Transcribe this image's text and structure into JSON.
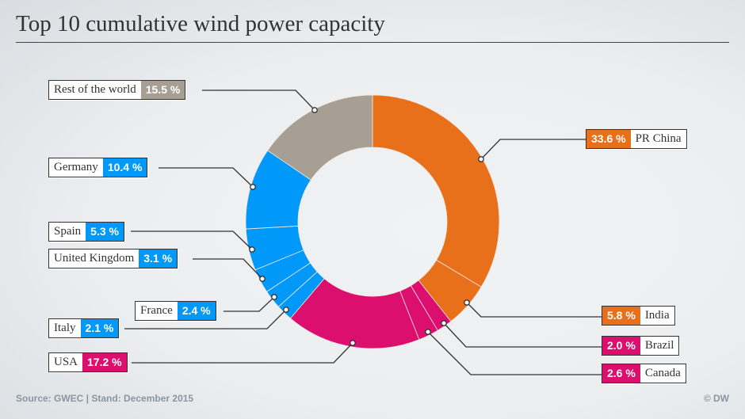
{
  "chart_data": {
    "type": "pie",
    "variant": "donut",
    "title": "Top 10 cumulative wind power capacity",
    "unit": "%",
    "slices": [
      {
        "label": "PR China",
        "value": 33.6,
        "display": "33.6 %",
        "color": "#e8701a"
      },
      {
        "label": "India",
        "value": 5.8,
        "display": "5.8 %",
        "color": "#e8701a"
      },
      {
        "label": "Brazil",
        "value": 2.0,
        "display": "2.0 %",
        "color": "#dc0e6e"
      },
      {
        "label": "Canada",
        "value": 2.6,
        "display": "2.6 %",
        "color": "#dc0e6e"
      },
      {
        "label": "USA",
        "value": 17.2,
        "display": "17.2 %",
        "color": "#dc0e6e"
      },
      {
        "label": "Italy",
        "value": 2.1,
        "display": "2.1 %",
        "color": "#0099fa"
      },
      {
        "label": "France",
        "value": 2.4,
        "display": "2.4 %",
        "color": "#0099fa"
      },
      {
        "label": "United Kingdom",
        "value": 3.1,
        "display": "3.1 %",
        "color": "#0099fa"
      },
      {
        "label": "Spain",
        "value": 5.3,
        "display": "5.3 %",
        "color": "#0099fa"
      },
      {
        "label": "Germany",
        "value": 10.4,
        "display": "10.4 %",
        "color": "#0099fa"
      },
      {
        "label": "Rest of the world",
        "value": 15.5,
        "display": "15.5 %",
        "color": "#a89f94"
      }
    ]
  },
  "footer": {
    "source": "Source: GWEC | Stand: December 2015",
    "copyright": "© DW"
  }
}
